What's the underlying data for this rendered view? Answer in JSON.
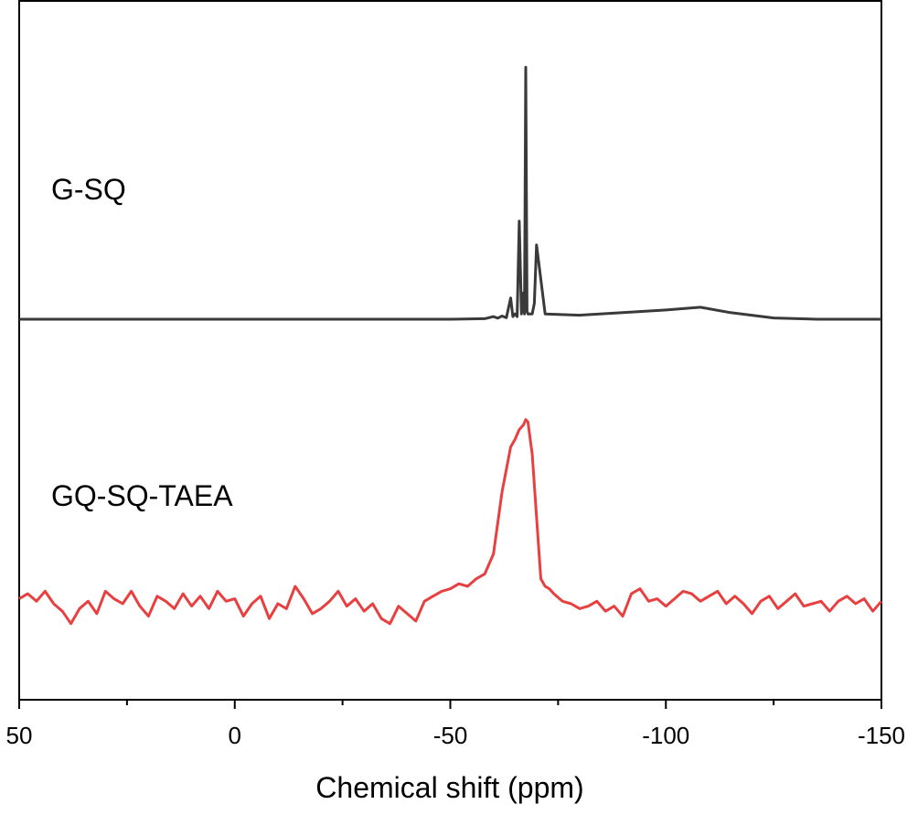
{
  "chart_data": {
    "type": "line",
    "title": "",
    "xlabel": "Chemical shift (ppm)",
    "ylabel": "",
    "xlim": [
      50,
      -150
    ],
    "x_reversed": true,
    "xticks": [
      50,
      0,
      -50,
      -100,
      -150
    ],
    "xtick_labels": [
      "50",
      "0",
      "-50",
      "-100",
      "-150"
    ],
    "minor_xticks": [
      25,
      -25,
      -75,
      -125
    ],
    "y_ticks_shown": false,
    "grid": false,
    "legend": "none",
    "series": [
      {
        "name": "G-SQ",
        "color": "#3a3a3a",
        "baseline": 0,
        "x": [
          50,
          30,
          10,
          -10,
          -30,
          -50,
          -58,
          -60,
          -61,
          -62,
          -63,
          -64,
          -64.5,
          -65,
          -65.5,
          -66,
          -66.5,
          -67,
          -67.2,
          -67.5,
          -67.8,
          -68,
          -68.5,
          -69,
          -69.5,
          -70,
          -72,
          -80,
          -90,
          -100,
          -108,
          -115,
          -125,
          -135,
          -150
        ],
        "y": [
          0,
          0,
          0,
          0,
          0,
          0,
          0.002,
          0.01,
          0.004,
          0.012,
          0.006,
          0.08,
          0.01,
          0.02,
          0.01,
          0.37,
          0.02,
          0.1,
          0.02,
          0.95,
          0.03,
          0.02,
          0.02,
          0.02,
          0.06,
          0.28,
          0.02,
          0.015,
          0.025,
          0.035,
          0.045,
          0.025,
          0.005,
          0,
          0
        ]
      },
      {
        "name": "GQ-SQ-TAEA",
        "color": "#e84040",
        "baseline": 0,
        "x": [
          50,
          48,
          46,
          44,
          42,
          40,
          38,
          36,
          34,
          32,
          30,
          28,
          26,
          24,
          22,
          20,
          18,
          16,
          14,
          12,
          10,
          8,
          6,
          4,
          2,
          0,
          -2,
          -4,
          -6,
          -8,
          -10,
          -12,
          -14,
          -16,
          -18,
          -20,
          -22,
          -24,
          -26,
          -28,
          -30,
          -32,
          -34,
          -36,
          -38,
          -40,
          -42,
          -44,
          -46,
          -48,
          -50,
          -52,
          -54,
          -56,
          -58,
          -60,
          -62,
          -64,
          -65,
          -66,
          -67,
          -67.5,
          -68,
          -69,
          -70,
          -71,
          -72,
          -73,
          -74,
          -76,
          -78,
          -80,
          -82,
          -84,
          -86,
          -88,
          -90,
          -92,
          -94,
          -96,
          -98,
          -100,
          -102,
          -104,
          -106,
          -108,
          -110,
          -112,
          -114,
          -116,
          -118,
          -120,
          -122,
          -124,
          -126,
          -128,
          -130,
          -132,
          -134,
          -136,
          -138,
          -140,
          -142,
          -144,
          -146,
          -148,
          -150
        ],
        "y": [
          0.02,
          0.04,
          0.01,
          0.05,
          0.0,
          -0.03,
          -0.08,
          -0.02,
          0.01,
          -0.04,
          0.05,
          0.02,
          0.0,
          0.05,
          -0.01,
          -0.05,
          0.03,
          0.01,
          -0.02,
          0.04,
          -0.01,
          0.03,
          -0.02,
          0.05,
          0.01,
          0.02,
          -0.05,
          0.0,
          0.03,
          -0.06,
          0.0,
          -0.02,
          0.07,
          0.02,
          -0.04,
          -0.02,
          0.01,
          0.05,
          -0.01,
          0.02,
          -0.03,
          0.0,
          -0.06,
          -0.08,
          -0.01,
          -0.04,
          -0.07,
          0.01,
          0.03,
          0.05,
          0.06,
          0.08,
          0.07,
          0.1,
          0.12,
          0.2,
          0.45,
          0.63,
          0.66,
          0.7,
          0.72,
          0.74,
          0.73,
          0.6,
          0.35,
          0.1,
          0.07,
          0.06,
          0.04,
          0.01,
          0.0,
          -0.02,
          -0.01,
          0.01,
          -0.03,
          -0.01,
          -0.05,
          0.04,
          0.06,
          0.01,
          0.02,
          -0.01,
          0.02,
          0.05,
          0.04,
          0.01,
          0.03,
          0.05,
          0.0,
          0.03,
          0.0,
          -0.04,
          0.01,
          0.03,
          -0.02,
          0.01,
          0.04,
          -0.01,
          0.0,
          0.01,
          -0.03,
          0.01,
          0.03,
          0.0,
          0.02,
          -0.03,
          0.01
        ]
      }
    ]
  }
}
